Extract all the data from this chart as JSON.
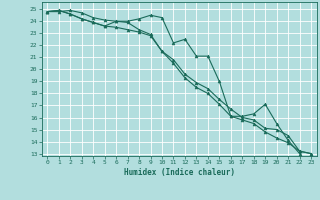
{
  "xlabel": "Humidex (Indice chaleur)",
  "bg_color": "#b2dede",
  "grid_color": "#ffffff",
  "line_color": "#1a6b5a",
  "xlim": [
    -0.5,
    23.5
  ],
  "ylim": [
    12.8,
    25.6
  ],
  "yticks": [
    13,
    14,
    15,
    16,
    17,
    18,
    19,
    20,
    21,
    22,
    23,
    24,
    25
  ],
  "xticks": [
    0,
    1,
    2,
    3,
    4,
    5,
    6,
    7,
    8,
    9,
    10,
    11,
    12,
    13,
    14,
    15,
    16,
    17,
    18,
    19,
    20,
    21,
    22,
    23
  ],
  "series": [
    [
      24.8,
      24.8,
      24.9,
      24.7,
      24.3,
      24.1,
      24.0,
      24.0,
      24.2,
      24.5,
      24.3,
      22.2,
      22.5,
      21.1,
      21.1,
      19.0,
      16.1,
      16.1,
      16.3,
      17.1,
      15.5,
      14.1,
      13.0,
      null
    ],
    [
      24.8,
      24.9,
      24.6,
      24.2,
      23.9,
      23.6,
      24.0,
      23.9,
      23.3,
      22.9,
      21.5,
      20.8,
      19.6,
      18.9,
      18.4,
      17.5,
      16.7,
      16.0,
      15.8,
      15.1,
      15.0,
      14.5,
      13.2,
      13.0
    ],
    [
      24.8,
      24.9,
      24.6,
      24.2,
      23.9,
      23.6,
      23.5,
      23.3,
      23.1,
      22.8,
      21.5,
      20.5,
      19.3,
      18.5,
      18.0,
      17.1,
      16.1,
      15.8,
      15.5,
      14.8,
      14.3,
      13.9,
      13.2,
      13.0
    ]
  ]
}
